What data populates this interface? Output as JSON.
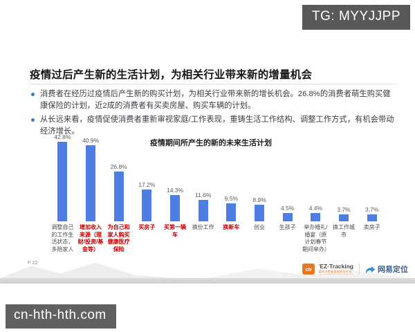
{
  "badge": {
    "text": "TG: MYYJJPP"
  },
  "watermark": {
    "text": "cn-hth-hth.com"
  },
  "slide": {
    "title": "疫情过后产生新的生活计划，为相关行业带来新的增量机会",
    "bullets": [
      "消费者在经历过疫情后产生新的购买计划，为相关行业带来新的增长机会。26.8%的消费者萌生购买健康保险的计划，近2成的消费者有买卖房屋、购买车辆的计划。",
      "从长远来看，疫情促使消费者重新审视家庭/工作表现，重铸生活工作结构、调整工作方式，有机会带动经济增长。"
    ],
    "page_number": "P 22",
    "footer": {
      "ctr_label": "ctr",
      "ez_tracking_label": "EZ·Tracking",
      "ez_tracking_subtitle": "媒体消费者智能研究平台",
      "netease_label": "网易定位",
      "ctr_orange": "#e87722",
      "netease_blue": "#3e8ede"
    }
  },
  "chart_data": {
    "type": "bar",
    "title": "疫情期间所产生的新的未来生活计划",
    "categories": [
      "调整自己的工作生活状态，多陪家人",
      "增加收入来源（理财/投资/基金等）",
      "为自己和家人购买健康医疗保险",
      "买房子",
      "买第一辆车",
      "换份工作",
      "换新车",
      "创业",
      "生孩子",
      "举办婚礼/婚宴（原计划春节期间举办）",
      "换工作城市",
      "卖房子"
    ],
    "values": [
      42.8,
      40.9,
      26.8,
      17.2,
      14.3,
      11.6,
      9.5,
      8.9,
      4.5,
      4.4,
      3.7,
      3.7
    ],
    "highlight_red": [
      false,
      true,
      true,
      true,
      true,
      false,
      true,
      false,
      false,
      false,
      false,
      false
    ],
    "bar_color": "#4e7de4",
    "highlight_color": "#c00000",
    "value_label_color": "#595959",
    "xlabel": "",
    "ylabel": "",
    "ylim": [
      0,
      45
    ],
    "grid": false,
    "legend": "none",
    "value_suffix": "%"
  }
}
